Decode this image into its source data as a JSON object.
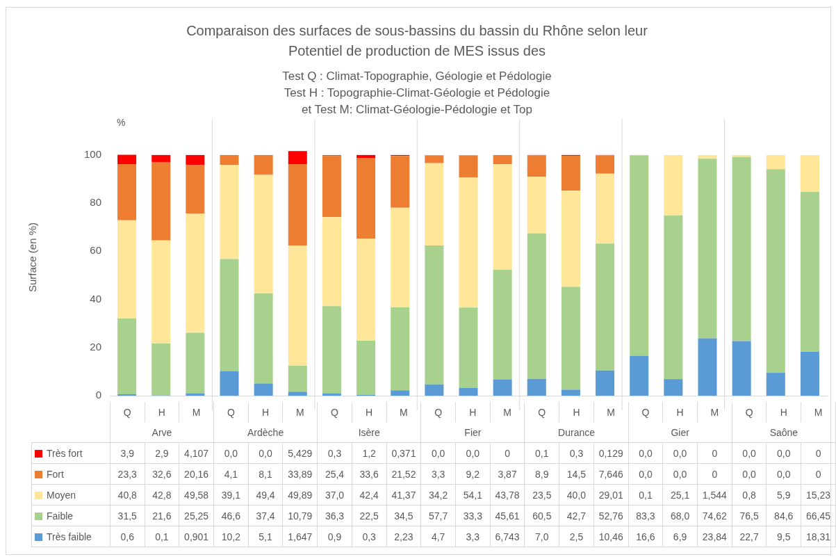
{
  "chart_data": {
    "type": "bar",
    "stacked": true,
    "title": "Comparaison des surfaces de sous-bassins du bassin du Rhône selon leur Potentiel de production de MES issus des",
    "subtitle": "Test Q :  Climat-Topographie, Géologie et Pédologie\nTest H : Topographie-Climat-Géologie et Pédologie\net Test M: Climat-Géologie-Pédologie et Top",
    "ylabel": "Surface (en %)",
    "annotations": [
      "%",
      "Arve",
      "Ardèche",
      "Isère",
      "Fier",
      "Durance",
      "Gier",
      "Saône"
    ],
    "categories": [
      "Q",
      "H",
      "M",
      "Q",
      "H",
      "M",
      "Q",
      "H",
      "M",
      "Q",
      "H",
      "M",
      "Q",
      "H",
      "M",
      "Q",
      "H",
      "M",
      "Q",
      "H",
      "M"
    ],
    "ylim": [
      0,
      115
    ],
    "yticks": [
      0,
      20,
      40,
      60,
      80,
      100
    ],
    "grid": false,
    "legend": "bottom",
    "data_labels": true,
    "series": [
      {
        "name": "Très faible",
        "color": "#5b9bd5",
        "values": [
          0.6,
          0.1,
          0.901,
          10.2,
          5.1,
          1.647,
          0.9,
          0.3,
          2.23,
          4.7,
          3.3,
          6.743,
          7.0,
          2.5,
          10.46,
          16.6,
          6.9,
          23.84,
          22.7,
          9.5,
          18.31
        ],
        "value_labels": [
          "0,6",
          "0,1",
          "0,901",
          "10,2",
          "5,1",
          "1,647",
          "0,9",
          "0,3",
          "2,23",
          "4,7",
          "3,3",
          "6,743",
          "7,0",
          "2,5",
          "10,46",
          "16,6",
          "6,9",
          "23,84",
          "22,7",
          "9,5",
          "18,31"
        ]
      },
      {
        "name": "Faible",
        "color": "#a9d18e",
        "values": [
          31.5,
          21.6,
          25.25,
          46.6,
          37.4,
          10.79,
          36.3,
          22.5,
          34.5,
          57.7,
          33.3,
          45.61,
          60.5,
          42.7,
          52.76,
          83.3,
          68.0,
          74.62,
          76.5,
          84.6,
          66.45
        ],
        "value_labels": [
          "31,5",
          "21,6",
          "25,25",
          "46,6",
          "37,4",
          "10,79",
          "36,3",
          "22,5",
          "34,5",
          "57,7",
          "33,3",
          "45,61",
          "60,5",
          "42,7",
          "52,76",
          "83,3",
          "68,0",
          "74,62",
          "76,5",
          "84,6",
          "66,45"
        ]
      },
      {
        "name": "Moyen",
        "color": "#ffe699",
        "values": [
          40.8,
          42.8,
          49.58,
          39.1,
          49.4,
          49.89,
          37.0,
          42.4,
          41.37,
          34.2,
          54.1,
          43.78,
          23.5,
          40.0,
          29.01,
          0.1,
          25.1,
          1.544,
          0.8,
          5.9,
          15.23
        ],
        "value_labels": [
          "40,8",
          "42,8",
          "49,58",
          "39,1",
          "49,4",
          "49,89",
          "37,0",
          "42,4",
          "41,37",
          "34,2",
          "54,1",
          "43,78",
          "23,5",
          "40,0",
          "29,01",
          "0,1",
          "25,1",
          "1,544",
          "0,8",
          "5,9",
          "15,23"
        ]
      },
      {
        "name": "Fort",
        "color": "#ed7d31",
        "values": [
          23.3,
          32.6,
          20.16,
          4.1,
          8.1,
          33.89,
          25.4,
          33.6,
          21.52,
          3.3,
          9.2,
          3.87,
          8.9,
          14.5,
          7.646,
          0.0,
          0.0,
          0,
          0.0,
          0.0,
          0
        ],
        "value_labels": [
          "23,3",
          "32,6",
          "20,16",
          "4,1",
          "8,1",
          "33,89",
          "25,4",
          "33,6",
          "21,52",
          "3,3",
          "9,2",
          "3,87",
          "8,9",
          "14,5",
          "7,646",
          "0,0",
          "0,0",
          "0",
          "0,0",
          "0,0",
          "0"
        ]
      },
      {
        "name": "Très fort",
        "color": "#ff0000",
        "values": [
          3.9,
          2.9,
          4.107,
          0.0,
          0.0,
          5.429,
          0.3,
          1.2,
          0.371,
          0.0,
          0.0,
          0,
          0.1,
          0.3,
          0.129,
          0.0,
          0.0,
          0,
          0.0,
          0.0,
          0
        ],
        "value_labels": [
          "3,9",
          "2,9",
          "4,107",
          "0,0",
          "0,0",
          "5,429",
          "0,3",
          "1,2",
          "0,371",
          "0,0",
          "0,0",
          "0",
          "0,1",
          "0,3",
          "0,129",
          "0,0",
          "0,0",
          "0",
          "0,0",
          "0,0",
          "0"
        ]
      }
    ]
  }
}
